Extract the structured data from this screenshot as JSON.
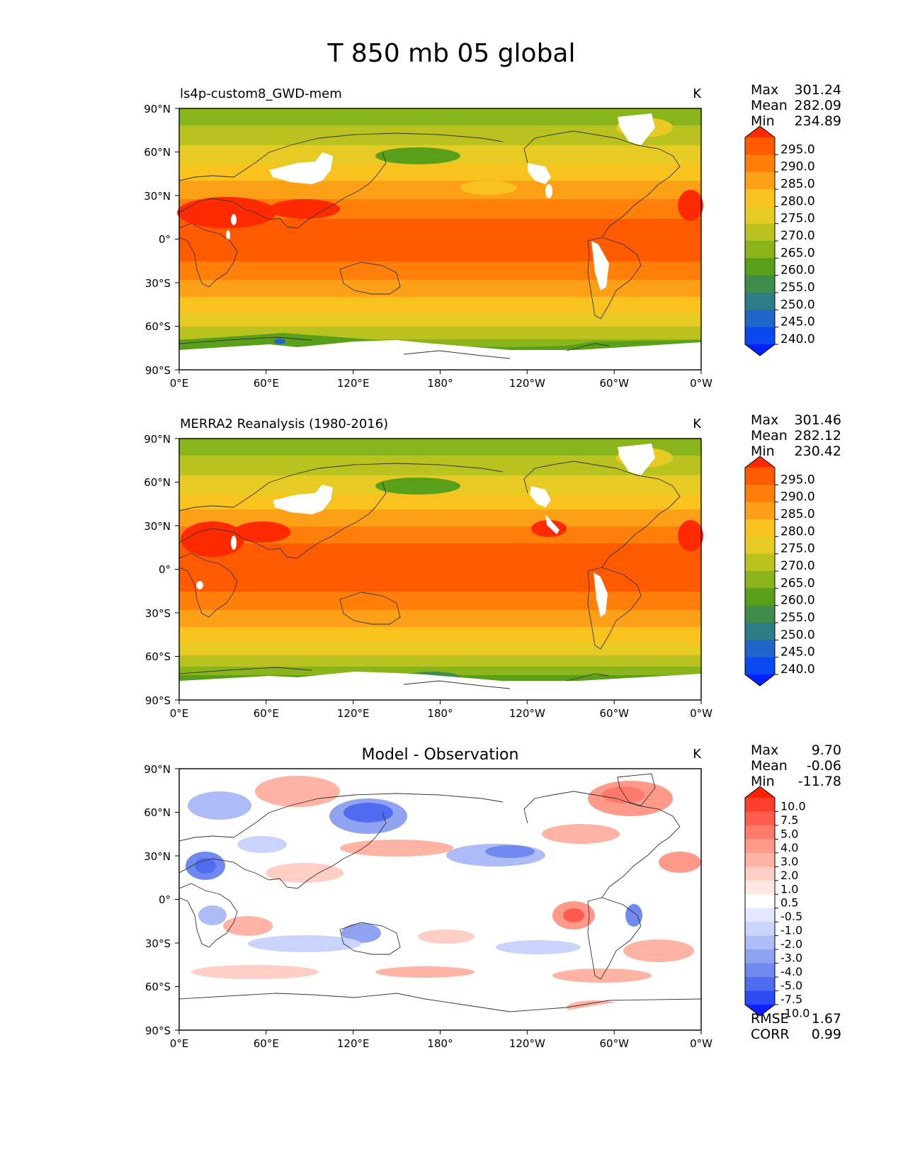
{
  "figure": {
    "title": "T 850 mb 05 global"
  },
  "chart_data": [
    {
      "type": "heatmap",
      "title": "ls4p-custom8_GWD-mem",
      "units": "K",
      "xlim": [
        0,
        360
      ],
      "ylim": [
        -90,
        90
      ],
      "xticks": [
        "0°E",
        "60°E",
        "120°E",
        "180°",
        "120°W",
        "60°W",
        "0°W"
      ],
      "yticks": [
        "90°N",
        "60°N",
        "30°N",
        "0°",
        "30°S",
        "60°S",
        "90°S"
      ],
      "stats": {
        "Max": "301.24",
        "Mean": "282.09",
        "Min": "234.89"
      },
      "colorbar": {
        "labels": [
          "295.0",
          "290.0",
          "285.0",
          "280.0",
          "275.0",
          "270.0",
          "265.0",
          "260.0",
          "255.0",
          "250.0",
          "245.0",
          "240.0"
        ],
        "colors": [
          "#ff2a00",
          "#ff5a00",
          "#ff7f0a",
          "#fca117",
          "#f9c21f",
          "#e7cb24",
          "#b9c21f",
          "#8ab41c",
          "#5a9f19",
          "#3f8b4a",
          "#2c7d86",
          "#1f66c8",
          "#0b48f2",
          "#0022ff"
        ],
        "extend": "both"
      }
    },
    {
      "type": "heatmap",
      "title": "MERRA2 Reanalysis (1980-2016)",
      "units": "K",
      "xlim": [
        0,
        360
      ],
      "ylim": [
        -90,
        90
      ],
      "xticks": [
        "0°E",
        "60°E",
        "120°E",
        "180°",
        "120°W",
        "60°W",
        "0°W"
      ],
      "yticks": [
        "90°N",
        "60°N",
        "30°N",
        "0°",
        "30°S",
        "60°S",
        "90°S"
      ],
      "stats": {
        "Max": "301.46",
        "Mean": "282.12",
        "Min": "230.42"
      },
      "colorbar": {
        "labels": [
          "295.0",
          "290.0",
          "285.0",
          "280.0",
          "275.0",
          "270.0",
          "265.0",
          "260.0",
          "255.0",
          "250.0",
          "245.0",
          "240.0"
        ],
        "colors": [
          "#ff2a00",
          "#ff5a00",
          "#ff7f0a",
          "#fca117",
          "#f9c21f",
          "#e7cb24",
          "#b9c21f",
          "#8ab41c",
          "#5a9f19",
          "#3f8b4a",
          "#2c7d86",
          "#1f66c8",
          "#0b48f2",
          "#0022ff"
        ],
        "extend": "both"
      }
    },
    {
      "type": "heatmap",
      "title": "Model - Observation",
      "units": "K",
      "xlim": [
        0,
        360
      ],
      "ylim": [
        -90,
        90
      ],
      "xticks": [
        "0°E",
        "60°E",
        "120°E",
        "180°",
        "120°W",
        "60°W",
        "0°W"
      ],
      "yticks": [
        "90°N",
        "60°N",
        "30°N",
        "0°",
        "30°S",
        "60°S",
        "90°S"
      ],
      "stats": {
        "Max": "9.70",
        "Mean": "-0.06",
        "Min": "-11.78"
      },
      "metrics": {
        "RMSE": "1.67",
        "CORR": "0.99"
      },
      "colorbar": {
        "labels": [
          "10.0",
          "7.5",
          "5.0",
          "4.0",
          "3.0",
          "2.0",
          "1.0",
          "0.5",
          "-0.5",
          "-1.0",
          "-2.0",
          "-3.0",
          "-4.0",
          "-5.0",
          "-7.5",
          "-10.0"
        ],
        "colors": [
          "#ff2200",
          "#ff3f2e",
          "#ff5c4d",
          "#ff7a6a",
          "#ff9a8a",
          "#ffb3a5",
          "#ffcfc6",
          "#ffe8e3",
          "#ffffff",
          "#e3e8ff",
          "#c9d3fb",
          "#adbcf6",
          "#8fa3f1",
          "#7089ee",
          "#4f6cf0",
          "#2c4df5",
          "#0a22ff"
        ],
        "extend": "both"
      }
    }
  ]
}
